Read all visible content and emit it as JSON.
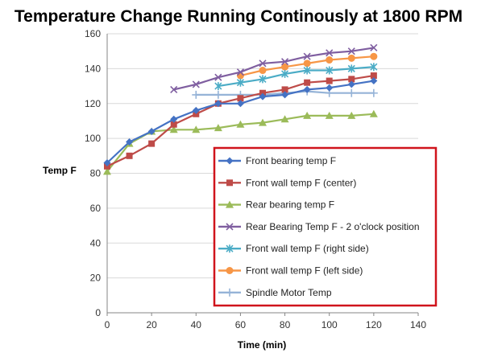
{
  "chart_data": {
    "type": "line",
    "title": "Temperature Change Running Continously at 1800 RPM",
    "xlabel": "Time (min)",
    "ylabel": "Temp F",
    "xlim": [
      0,
      140
    ],
    "ylim": [
      0,
      160
    ],
    "xticks": [
      "0",
      "20",
      "40",
      "60",
      "80",
      "100",
      "120",
      "140"
    ],
    "yticks": [
      "0",
      "20",
      "40",
      "60",
      "80",
      "100",
      "120",
      "140",
      "160"
    ],
    "grid": "horizontal",
    "legend_position": "bottom-right",
    "legend_border_color": "#d0141c",
    "series": [
      {
        "name": "Front bearing  temp F",
        "color": "#4472c4",
        "marker": "diamond",
        "x": [
          0,
          10,
          20,
          30,
          40,
          50,
          60,
          70,
          80,
          90,
          100,
          110,
          120
        ],
        "y": [
          86,
          98,
          104,
          111,
          116,
          120,
          120,
          124,
          125,
          128,
          129,
          131,
          133
        ]
      },
      {
        "name": "Front wall temp F (center)",
        "color": "#be4b48",
        "marker": "square",
        "x": [
          0,
          10,
          20,
          30,
          40,
          50,
          60,
          70,
          80,
          90,
          100,
          110,
          120
        ],
        "y": [
          84,
          90,
          97,
          108,
          114,
          120,
          123,
          126,
          128,
          132,
          133,
          134,
          136
        ]
      },
      {
        "name": "Rear bearing temp F",
        "color": "#9bbb59",
        "marker": "triangle",
        "x": [
          0,
          10,
          20,
          30,
          40,
          50,
          60,
          70,
          80,
          90,
          100,
          110,
          120
        ],
        "y": [
          81,
          97,
          104,
          105,
          105,
          106,
          108,
          109,
          111,
          113,
          113,
          113,
          114
        ]
      },
      {
        "name": "Rear Bearing Temp F - 2 o'clock position",
        "color": "#7f5ea0",
        "marker": "x",
        "x": [
          30,
          40,
          50,
          60,
          70,
          80,
          90,
          100,
          110,
          120
        ],
        "y": [
          128,
          131,
          135,
          138,
          143,
          144,
          147,
          149,
          150,
          152
        ]
      },
      {
        "name": "Front wall temp F (right side)",
        "color": "#4bacc6",
        "marker": "star",
        "x": [
          50,
          60,
          70,
          80,
          90,
          100,
          110,
          120
        ],
        "y": [
          130,
          132,
          134,
          137,
          139,
          139,
          140,
          141
        ]
      },
      {
        "name": "Front wall temp F (left side)",
        "color": "#f79646",
        "marker": "circle",
        "x": [
          60,
          70,
          80,
          90,
          100,
          110,
          120
        ],
        "y": [
          136,
          139,
          141,
          143,
          145,
          146,
          147
        ]
      },
      {
        "name": "Spindle Motor Temp",
        "color": "#95b3d7",
        "marker": "plus",
        "x": [
          40,
          50,
          60,
          70,
          80,
          90,
          100,
          110,
          120
        ],
        "y": [
          125,
          125,
          125,
          125,
          126,
          127,
          126,
          126,
          126
        ]
      }
    ]
  }
}
